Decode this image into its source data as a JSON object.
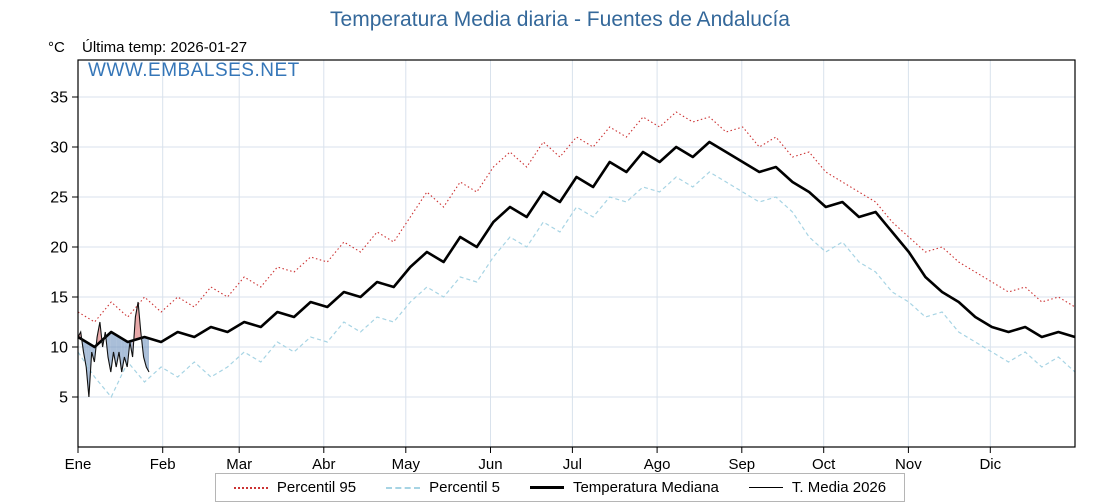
{
  "header": {
    "title": "Temperatura Media diaria - Fuentes de Andalucía",
    "unit_label": "°C",
    "last_temp_label": "Última temp: 2026-01-27",
    "watermark": "WWW.EMBALSES.NET"
  },
  "colors": {
    "title": "#34689a",
    "watermark": "#3576b8",
    "p95": "#cc3333",
    "p5": "#a7d4e4",
    "median": "#000000",
    "t2026": "#111111",
    "fill_above_median": "rgba(214,96,96,0.55)",
    "fill_below_median": "rgba(112,146,190,0.60)",
    "grid": "#d9e2ec",
    "plot_border": "#000000"
  },
  "chart_data": {
    "type": "line",
    "title": "Temperatura Media diaria - Fuentes de Andalucía",
    "ylabel": "°C",
    "ylim": [
      0,
      38.7
    ],
    "yticks": [
      5,
      10,
      15,
      20,
      25,
      30,
      35
    ],
    "grid": true,
    "legend_position": "bottom",
    "days_in_year": 365,
    "months": [
      "Ene",
      "Feb",
      "Mar",
      "Abr",
      "May",
      "Jun",
      "Jul",
      "Ago",
      "Sep",
      "Oct",
      "Nov",
      "Dic"
    ],
    "month_start_days": [
      0,
      31,
      59,
      90,
      120,
      151,
      181,
      212,
      243,
      273,
      304,
      334
    ],
    "series": [
      {
        "name": "Percentil 95",
        "style": "dotted",
        "color": "#cc3333",
        "x_mode": "spread_full_year",
        "values": [
          13.5,
          12.5,
          14.5,
          13,
          15,
          13.5,
          15,
          14,
          16,
          15,
          17,
          16,
          18,
          17.5,
          19,
          18.5,
          20.5,
          19.5,
          21.5,
          20.5,
          23,
          25.5,
          24,
          26.5,
          25.5,
          28,
          29.5,
          28,
          30.5,
          29,
          31,
          30,
          32,
          31,
          33,
          32,
          33.5,
          32.5,
          33,
          31.5,
          32,
          30,
          31,
          29,
          29.5,
          27.5,
          26.5,
          25.5,
          24.5,
          22.5,
          21,
          19.5,
          20,
          18.5,
          17.5,
          16.5,
          15.5,
          16,
          14.5,
          15,
          14
        ]
      },
      {
        "name": "Percentil 5",
        "style": "dashed",
        "color": "#a7d4e4",
        "x_mode": "spread_full_year",
        "values": [
          9.5,
          7,
          5,
          8.5,
          6.5,
          8,
          7,
          8.5,
          7,
          8,
          9.5,
          8.5,
          10.5,
          9.5,
          11,
          10.5,
          12.5,
          11.5,
          13,
          12.5,
          14.5,
          16,
          15,
          17,
          16.5,
          19,
          21,
          20,
          22.5,
          21.5,
          24,
          23,
          25,
          24.5,
          26,
          25.5,
          27,
          26,
          27.5,
          26.5,
          25.5,
          24.5,
          25,
          23.5,
          21,
          19.5,
          20.5,
          18.5,
          17.5,
          15.5,
          14.5,
          13,
          13.5,
          11.5,
          10.5,
          9.5,
          8.5,
          9.5,
          8,
          9,
          7.5
        ]
      },
      {
        "name": "Temperatura Mediana",
        "style": "solid-thick",
        "color": "#000000",
        "x_mode": "spread_full_year",
        "values": [
          11,
          10,
          11.5,
          10.5,
          11,
          10.5,
          11.5,
          11,
          12,
          11.5,
          12.5,
          12,
          13.5,
          13,
          14.5,
          14,
          15.5,
          15,
          16.5,
          16,
          18,
          19.5,
          18.5,
          21,
          20,
          22.5,
          24,
          23,
          25.5,
          24.5,
          27,
          26,
          28.5,
          27.5,
          29.5,
          28.5,
          30,
          29,
          30.5,
          29.5,
          28.5,
          27.5,
          28,
          26.5,
          25.5,
          24,
          24.5,
          23,
          23.5,
          21.5,
          19.5,
          17,
          15.5,
          14.5,
          13,
          12,
          11.5,
          12,
          11,
          11.5,
          11
        ]
      },
      {
        "name": "T. Media 2026",
        "style": "solid-thin",
        "color": "#111111",
        "x_mode": "daily_from_jan1",
        "values": [
          11,
          11.5,
          9.5,
          8,
          5,
          9.5,
          8.5,
          11,
          12.5,
          10,
          11.5,
          9,
          7.5,
          9.5,
          8,
          9.5,
          7.5,
          9,
          8,
          10.5,
          9,
          13,
          14.5,
          11.5,
          9,
          8,
          7.5
        ]
      }
    ]
  },
  "legend": {
    "items": [
      {
        "label": "Percentil 95"
      },
      {
        "label": "Percentil 5"
      },
      {
        "label": "Temperatura Mediana"
      },
      {
        "label": "T. Media 2026"
      }
    ]
  }
}
